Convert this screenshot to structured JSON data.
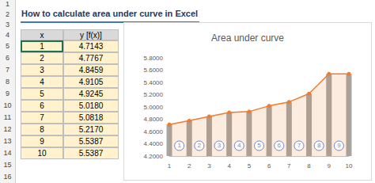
{
  "header": {
    "title": "How to calculate area under curve in Excel"
  },
  "sheet": {
    "row_numbers": [
      1,
      2,
      3,
      4,
      5,
      6,
      7,
      8,
      9,
      10,
      11,
      12,
      13,
      14,
      15,
      16
    ]
  },
  "table": {
    "columns": [
      "x",
      "y [f(x)]"
    ],
    "rows": [
      [
        "1",
        "4.7143"
      ],
      [
        "2",
        "4.7767"
      ],
      [
        "3",
        "4.8459"
      ],
      [
        "4",
        "4.9105"
      ],
      [
        "5",
        "4.9245"
      ],
      [
        "6",
        "5.0180"
      ],
      [
        "7",
        "5.0818"
      ],
      [
        "8",
        "5.2170"
      ],
      [
        "9",
        "5.5387"
      ],
      [
        "10",
        "5.5387"
      ]
    ]
  },
  "chart_data": {
    "type": "line",
    "title": "Area under curve",
    "x": [
      1,
      2,
      3,
      4,
      5,
      6,
      7,
      8,
      9,
      10
    ],
    "xlim": [
      1,
      10
    ],
    "xticks": [
      1,
      2,
      3,
      4,
      5,
      6,
      7,
      8,
      9,
      10
    ],
    "ylim": [
      4.2,
      5.8
    ],
    "yticks": [
      {
        "value": 4.2,
        "label": "4.2000"
      },
      {
        "value": 4.4,
        "label": "4.4000"
      },
      {
        "value": 4.6,
        "label": "4.6000"
      },
      {
        "value": 4.8,
        "label": "4.8000"
      },
      {
        "value": 5.0,
        "label": "5.0000"
      },
      {
        "value": 5.2,
        "label": "5.2000"
      },
      {
        "value": 5.4,
        "label": "5.4000"
      },
      {
        "value": 5.6,
        "label": "5.6000"
      },
      {
        "value": 5.8,
        "label": "5.8000"
      }
    ],
    "grid": false,
    "series": [
      {
        "type": "bar",
        "color": "#a5a5a5",
        "values": [
          4.7143,
          4.7767,
          4.8459,
          4.9105,
          4.9245,
          5.018,
          5.0818,
          5.217,
          5.5387,
          5.5387
        ]
      },
      {
        "type": "area",
        "color": "#ed7d31",
        "marker": "circle",
        "values": [
          4.7143,
          4.7767,
          4.8459,
          4.9105,
          4.9245,
          5.018,
          5.0818,
          5.217,
          5.5387,
          5.5387
        ]
      }
    ],
    "annotations": [
      "1",
      "2",
      "3",
      "4",
      "5",
      "6",
      "7",
      "8",
      "9"
    ]
  }
}
